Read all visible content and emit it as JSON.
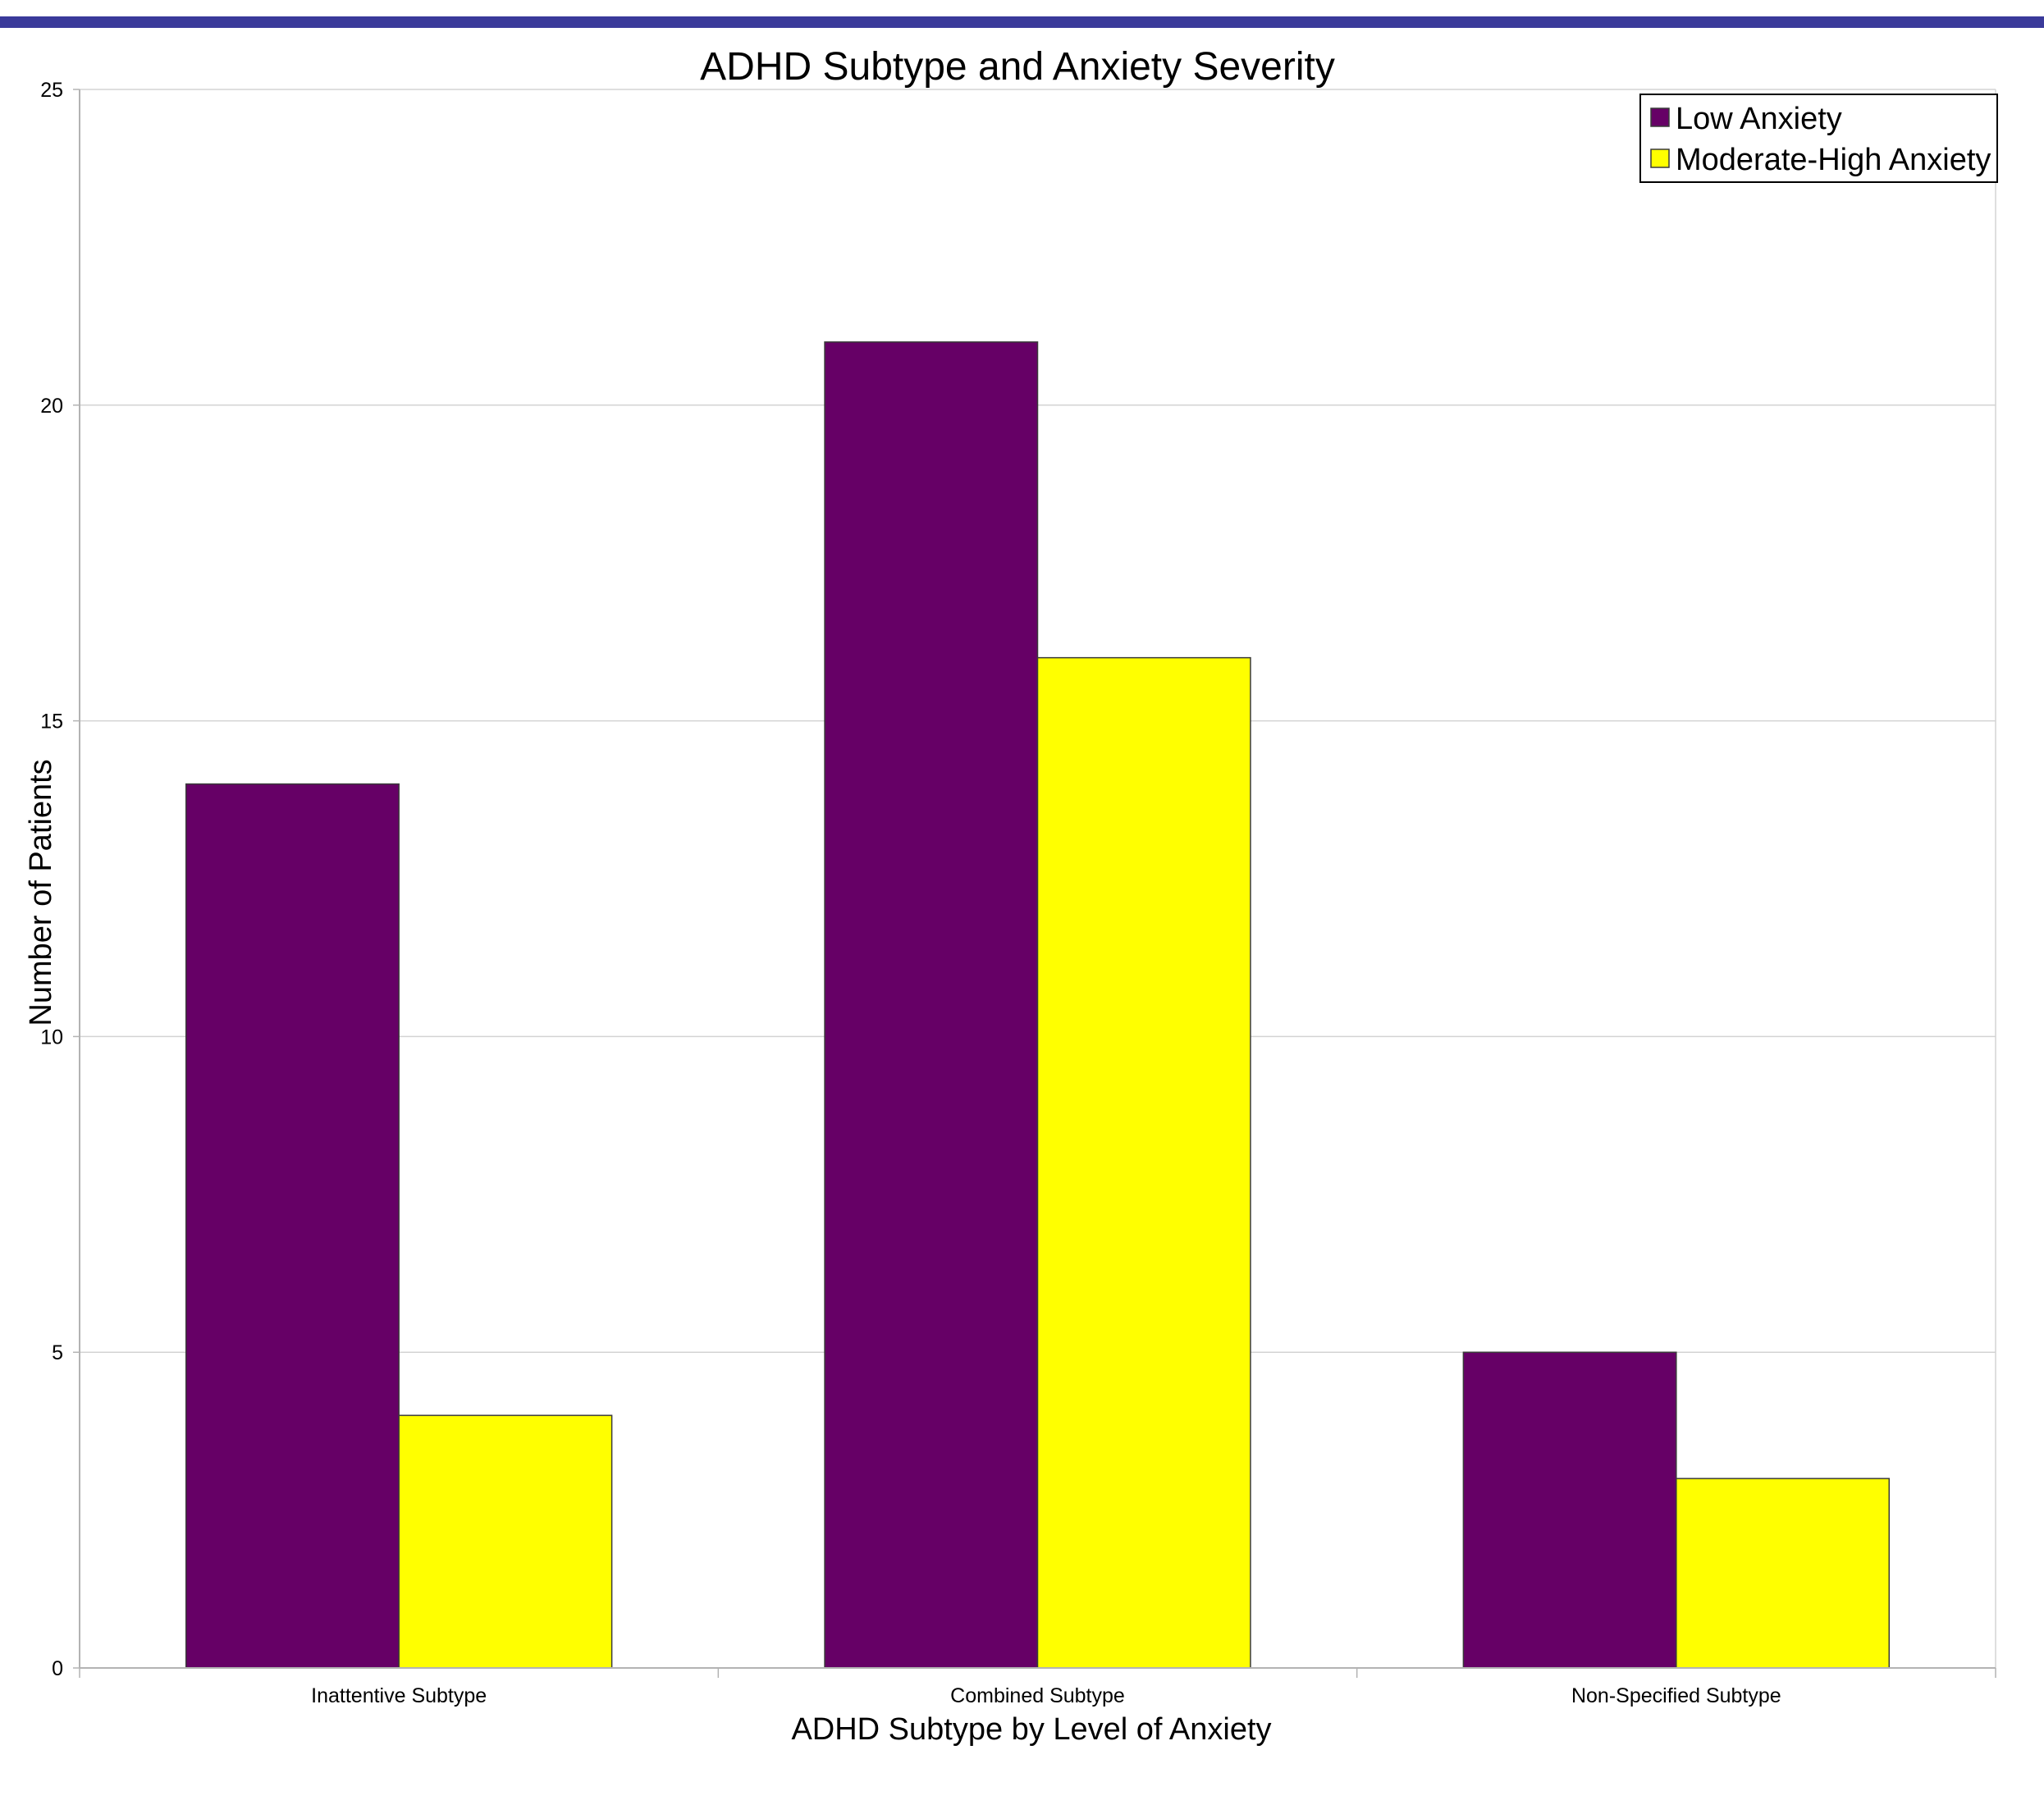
{
  "chart_data": {
    "type": "bar",
    "title": "ADHD Subtype and Anxiety Severity",
    "xlabel": "ADHD Subtype by Level of Anxiety",
    "ylabel": "Number of Patients",
    "categories": [
      "Inattentive Subtype",
      "Combined Subtype",
      "Non-Specified Subtype"
    ],
    "series": [
      {
        "name": "Low Anxiety",
        "values": [
          14,
          21,
          5
        ],
        "color": "#660066"
      },
      {
        "name": "Moderate-High Anxiety",
        "values": [
          4,
          16,
          3
        ],
        "color": "#ffff00"
      }
    ],
    "ylim": [
      0,
      25
    ],
    "yticks": [
      0,
      5,
      10,
      15,
      20,
      25
    ],
    "grid": true,
    "legend": "top-right"
  },
  "colors": {
    "top_band": "#3a3a9a",
    "gridline": "#d3d3d3",
    "axis": "#b3b3b3",
    "bar_outline": "#3a3a3a"
  }
}
